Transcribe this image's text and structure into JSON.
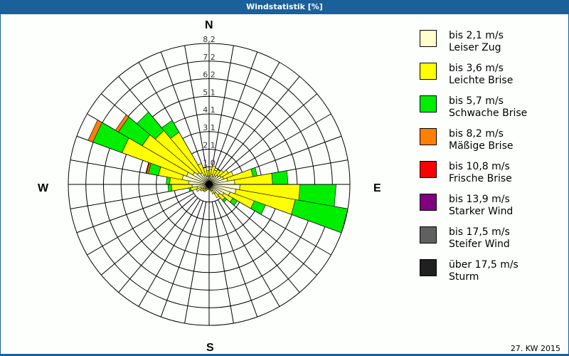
{
  "window": {
    "title": "Windstatistik [%]"
  },
  "compass": {
    "n": "N",
    "e": "E",
    "s": "S",
    "w": "W"
  },
  "footer": {
    "period": "27. KW 2015"
  },
  "legend": [
    {
      "range": "bis 2,1 m/s",
      "name": "Leiser Zug",
      "color": "#ffffcc"
    },
    {
      "range": "bis 3,6 m/s",
      "name": "Leichte Brise",
      "color": "#ffff00"
    },
    {
      "range": "bis 5,7 m/s",
      "name": "Schwache Brise",
      "color": "#00ee00"
    },
    {
      "range": "bis 8,2 m/s",
      "name": "Mäßige Brise",
      "color": "#ff8000"
    },
    {
      "range": "bis 10,8 m/s",
      "name": "Frische Brise",
      "color": "#ff0000"
    },
    {
      "range": "bis 13,9 m/s",
      "name": "Starker Wind",
      "color": "#800080"
    },
    {
      "range": "bis 17,5 m/s",
      "name": "Steifer Wind",
      "color": "#606060"
    },
    {
      "range": "über 17,5 m/s",
      "name": "Sturm",
      "color": "#202020"
    }
  ],
  "chart_data": {
    "type": "wind-rose",
    "title": "Windstatistik [%]",
    "subtitle": "27. KW 2015",
    "radial_ticks": [
      "1,0",
      "2,1",
      "3,1",
      "4,1",
      "5,1",
      "6,2",
      "7,2",
      "8,2"
    ],
    "radial_max": 8.2,
    "sector_width_deg": 10,
    "classes": [
      "Leiser Zug",
      "Leichte Brise",
      "Schwache Brise",
      "Mäßige Brise",
      "Frische Brise",
      "Starker Wind",
      "Steifer Wind",
      "Sturm"
    ],
    "sectors": [
      {
        "dir": 0,
        "cum": [
          0.5,
          0.9
        ]
      },
      {
        "dir": 10,
        "cum": [
          0.6,
          1.1
        ]
      },
      {
        "dir": 20,
        "cum": [
          0.5,
          0.9
        ]
      },
      {
        "dir": 30,
        "cum": [
          0.6,
          1.0
        ]
      },
      {
        "dir": 40,
        "cum": [
          0.7,
          1.1
        ]
      },
      {
        "dir": 50,
        "cum": [
          0.8,
          1.3
        ]
      },
      {
        "dir": 60,
        "cum": [
          0.9,
          1.5
        ]
      },
      {
        "dir": 70,
        "cum": [
          1.1,
          2.6,
          2.85
        ]
      },
      {
        "dir": 80,
        "cum": [
          1.5,
          3.7,
          4.6
        ]
      },
      {
        "dir": 90,
        "cum": [
          1.8,
          5.3,
          7.4
        ]
      },
      {
        "dir": 100,
        "cum": [
          1.6,
          5.1,
          8.2
        ]
      },
      {
        "dir": 110,
        "cum": [
          1.3,
          2.8,
          3.5
        ]
      },
      {
        "dir": 120,
        "cum": [
          1.0,
          1.6,
          1.9
        ]
      },
      {
        "dir": 130,
        "cum": [
          0.8,
          1.2,
          1.35
        ]
      },
      {
        "dir": 140,
        "cum": [
          0.6,
          0.9
        ]
      },
      {
        "dir": 150,
        "cum": [
          0.4,
          0.6
        ]
      },
      {
        "dir": 160,
        "cum": [
          0.3,
          0.4
        ]
      },
      {
        "dir": 170,
        "cum": [
          0.2,
          0.3
        ]
      },
      {
        "dir": 180,
        "cum": [
          0.2,
          0.3
        ]
      },
      {
        "dir": 190,
        "cum": [
          0.2,
          0.3
        ]
      },
      {
        "dir": 200,
        "cum": [
          0.2,
          0.4
        ]
      },
      {
        "dir": 210,
        "cum": [
          0.3,
          0.5
        ]
      },
      {
        "dir": 220,
        "cum": [
          0.3,
          0.5
        ]
      },
      {
        "dir": 230,
        "cum": [
          0.4,
          0.6
        ]
      },
      {
        "dir": 240,
        "cum": [
          0.5,
          0.8
        ]
      },
      {
        "dir": 250,
        "cum": [
          0.7,
          1.1,
          1.2
        ]
      },
      {
        "dir": 260,
        "cum": [
          1.0,
          2.2,
          2.4
        ]
      },
      {
        "dir": 270,
        "cum": [
          1.2,
          2.3,
          2.5
        ]
      },
      {
        "dir": 280,
        "cum": [
          1.6,
          3.0,
          3.6,
          3.7,
          3.75
        ]
      },
      {
        "dir": 290,
        "cum": [
          1.4,
          5.4,
          7.2,
          7.5
        ]
      },
      {
        "dir": 300,
        "cum": [
          1.1,
          4.5,
          6.1,
          6.3
        ]
      },
      {
        "dir": 310,
        "cum": [
          0.9,
          4.1,
          5.5
        ]
      },
      {
        "dir": 320,
        "cum": [
          0.8,
          3.5,
          4.3
        ]
      },
      {
        "dir": 330,
        "cum": [
          0.6,
          1.3
        ]
      },
      {
        "dir": 340,
        "cum": [
          0.5,
          1.0
        ]
      },
      {
        "dir": 350,
        "cum": [
          0.5,
          0.8
        ]
      }
    ]
  }
}
